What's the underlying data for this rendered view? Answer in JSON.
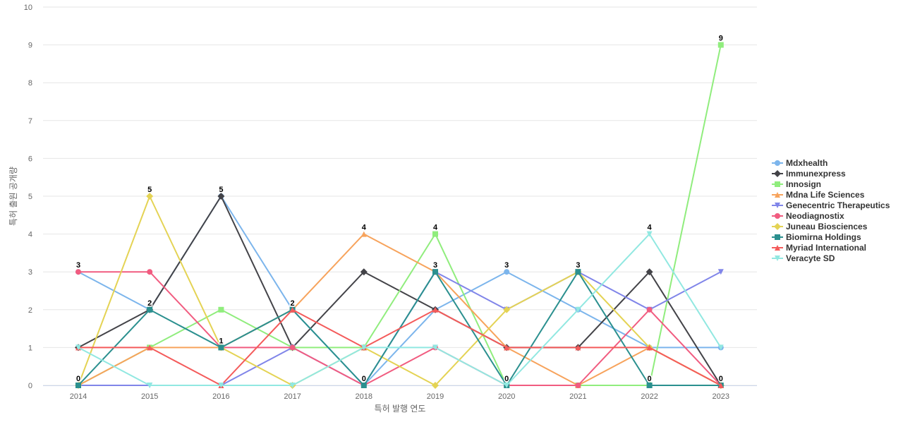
{
  "chart_data": {
    "type": "line",
    "title": "",
    "xlabel": "특허 발행 연도",
    "ylabel": "특허 출원 공개량",
    "ylim": [
      0,
      10
    ],
    "yticks": [
      0,
      1,
      2,
      3,
      4,
      5,
      6,
      7,
      8,
      9,
      10
    ],
    "grid": true,
    "legend_position": "right",
    "categories": [
      "2014",
      "2015",
      "2016",
      "2017",
      "2018",
      "2019",
      "2020",
      "2021",
      "2022",
      "2023"
    ],
    "data_labels_series": "Biomirna Holdings",
    "series": [
      {
        "name": "Mdxhealth",
        "color": "#7cb5ec",
        "marker": "circle",
        "values": [
          3,
          2,
          5,
          2,
          0,
          2,
          3,
          2,
          1,
          1
        ]
      },
      {
        "name": "Immunexpress",
        "color": "#434348",
        "marker": "diamond",
        "values": [
          1,
          2,
          5,
          1,
          3,
          2,
          1,
          1,
          3,
          0
        ]
      },
      {
        "name": "Innosign",
        "color": "#90ed7d",
        "marker": "square",
        "values": [
          0,
          1,
          2,
          1,
          1,
          4,
          0,
          0,
          0,
          9
        ]
      },
      {
        "name": "Mdna Life Sciences",
        "color": "#f7a35c",
        "marker": "triangle",
        "values": [
          0,
          1,
          1,
          2,
          4,
          3,
          1,
          0,
          1,
          0
        ]
      },
      {
        "name": "Genecentric Therapeutics",
        "color": "#8085e9",
        "marker": "triangle-down",
        "values": [
          0,
          0,
          0,
          1,
          0,
          3,
          2,
          3,
          2,
          3
        ]
      },
      {
        "name": "Neodiagnostix",
        "color": "#f15c80",
        "marker": "circle",
        "values": [
          3,
          3,
          1,
          1,
          0,
          1,
          0,
          0,
          2,
          0
        ]
      },
      {
        "name": "Juneau Biosciences",
        "color": "#e4d354",
        "marker": "diamond",
        "values": [
          0,
          5,
          1,
          0,
          1,
          0,
          2,
          3,
          1,
          0
        ]
      },
      {
        "name": "Biomirna Holdings",
        "color": "#2b908f",
        "marker": "square",
        "values": [
          0,
          2,
          1,
          2,
          0,
          3,
          0,
          3,
          0,
          0
        ]
      },
      {
        "name": "Myriad International",
        "color": "#f45b5b",
        "marker": "triangle",
        "values": [
          1,
          1,
          0,
          2,
          1,
          2,
          1,
          1,
          1,
          0
        ]
      },
      {
        "name": "Veracyte SD",
        "color": "#91e8e1",
        "marker": "triangle-down",
        "values": [
          1,
          0,
          0,
          0,
          1,
          1,
          0,
          2,
          4,
          1
        ]
      }
    ],
    "top_labels": [
      "3",
      "5",
      "5",
      "2",
      "4",
      "4",
      "3",
      "3",
      "4",
      "9"
    ]
  }
}
